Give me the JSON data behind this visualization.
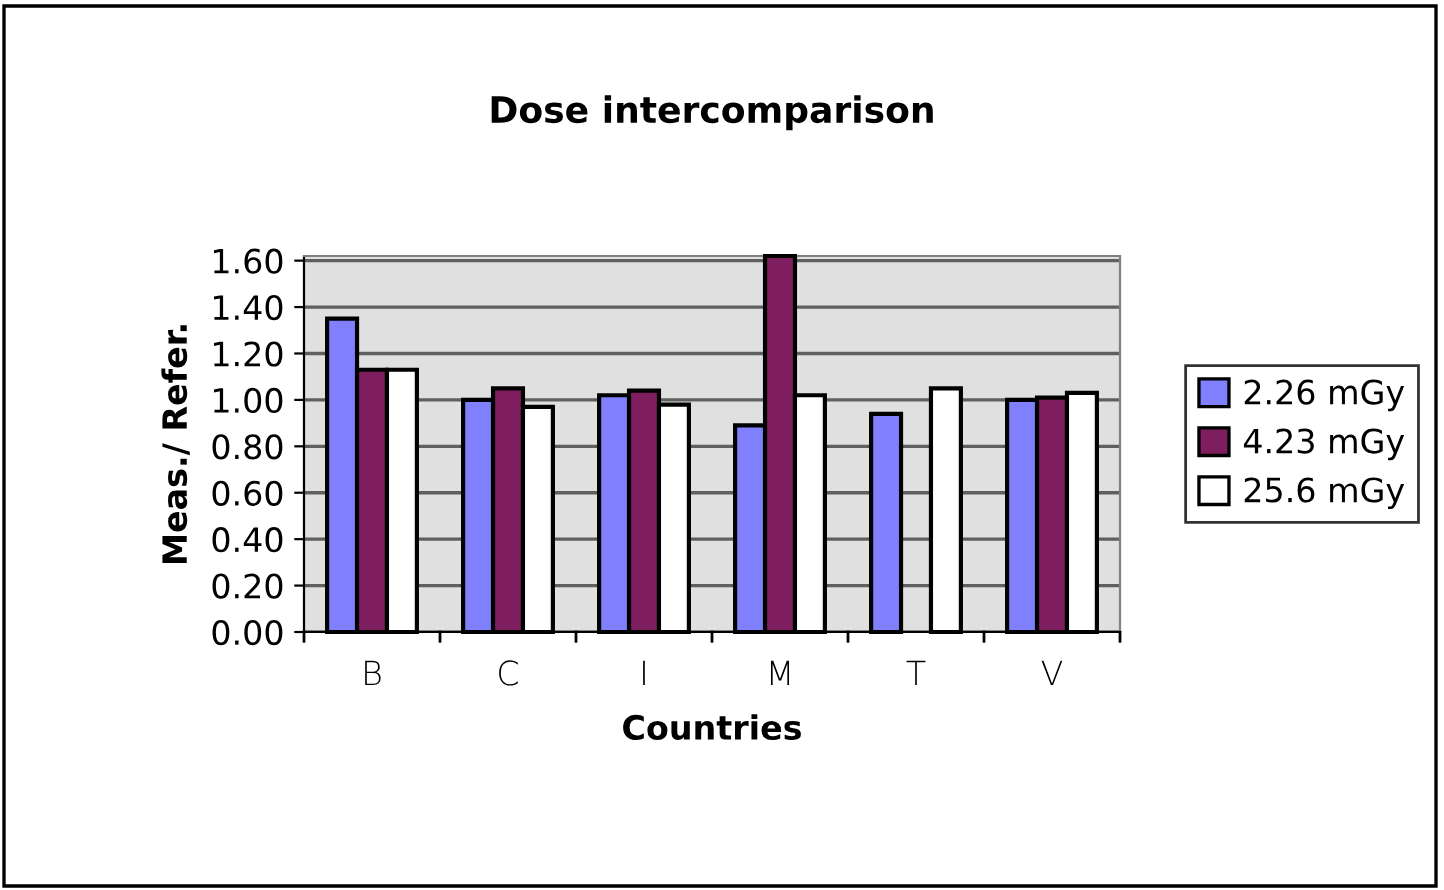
{
  "chart_data": {
    "type": "bar",
    "title": "Dose intercomparison",
    "xlabel": "Countries",
    "ylabel": "Meas./ Refer.",
    "categories": [
      "B",
      "C",
      "I",
      "M",
      "T",
      "V"
    ],
    "series": [
      {
        "name": "2.26 mGy",
        "color": "#8080ff",
        "values": [
          1.35,
          1.0,
          1.02,
          0.89,
          0.94,
          1.0
        ]
      },
      {
        "name": "4.23 mGy",
        "color": "#7e1e5e",
        "values": [
          1.13,
          1.05,
          1.04,
          1.62,
          null,
          1.01
        ]
      },
      {
        "name": "25.6 mGy",
        "color": "#ffffff",
        "values": [
          1.13,
          0.97,
          0.98,
          1.02,
          1.05,
          1.03
        ]
      }
    ],
    "ylim": [
      0,
      1.62
    ],
    "yticks": [
      {
        "value": 0,
        "label": "0.00"
      },
      {
        "value": 0.2,
        "label": "0.20"
      },
      {
        "value": 0.4,
        "label": "0.40"
      },
      {
        "value": 0.6,
        "label": "0.60"
      },
      {
        "value": 0.8,
        "label": "0.80"
      },
      {
        "value": 1.0,
        "label": "1.00"
      },
      {
        "value": 1.2,
        "label": "1.20"
      },
      {
        "value": 1.4,
        "label": "1.40"
      },
      {
        "value": 1.6,
        "label": "1.60"
      }
    ],
    "grid": "y",
    "legend": "right"
  }
}
